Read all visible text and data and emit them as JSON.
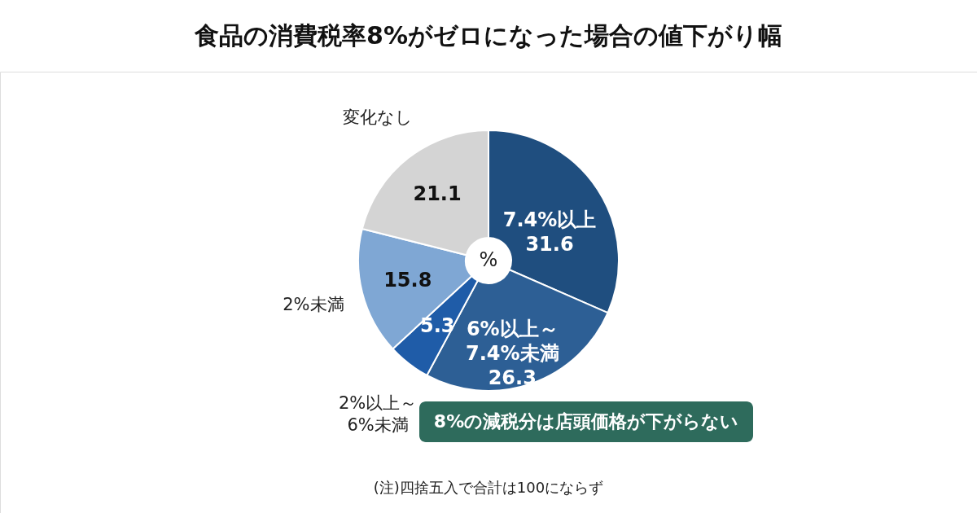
{
  "chart_data": {
    "type": "donut",
    "title": "食品の消費税率8%がゼロになった場合の値下がり幅",
    "categories": [
      "7.4%以上",
      "6%以上～\n7.4%未満",
      "2%以上～\n6%未満",
      "2%未満",
      "変化なし"
    ],
    "values": [
      31.6,
      26.3,
      5.3,
      15.8,
      21.1
    ],
    "colors": [
      "#1f4e7f",
      "#2d5f95",
      "#1f5ca8",
      "#7fa7d4",
      "#d4d4d4"
    ],
    "data_labels": true,
    "annotations": [
      "%",
      "8%の減税分は店頭価格が下がらない",
      "(注)四捨五入で合計は100にならず"
    ]
  }
}
